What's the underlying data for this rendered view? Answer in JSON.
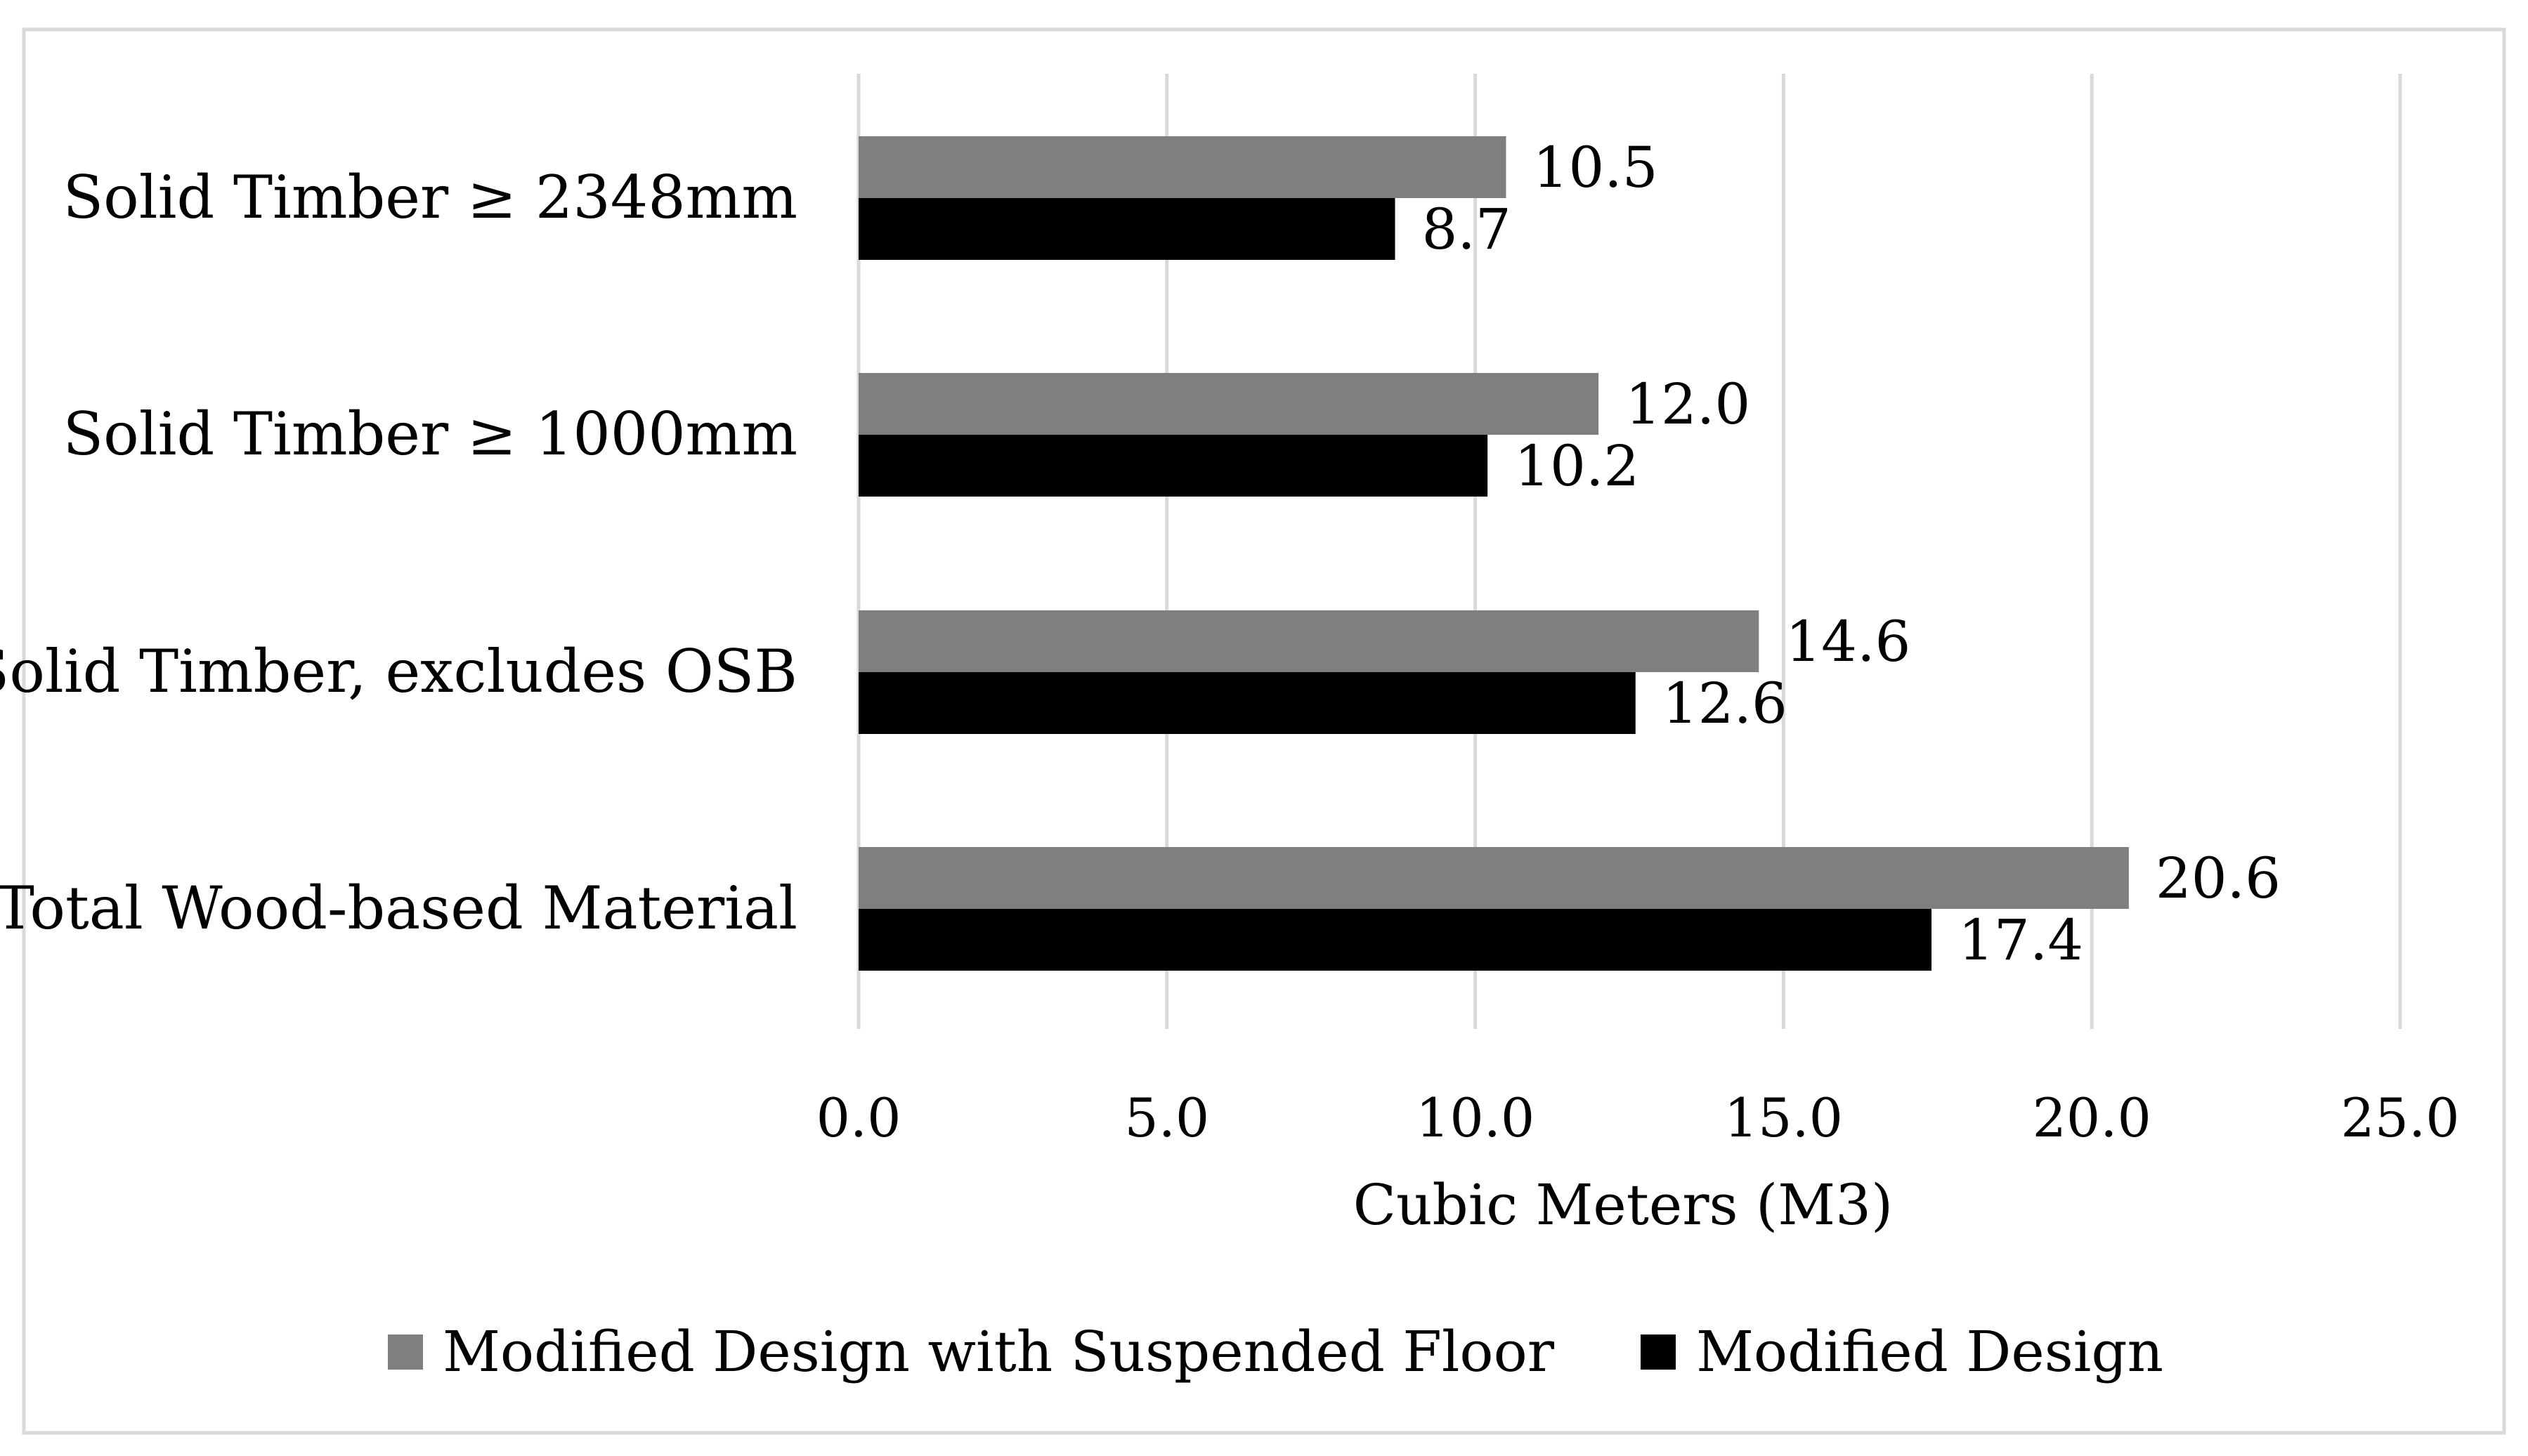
{
  "chart_data": {
    "type": "bar",
    "orientation": "horizontal",
    "categories": [
      "Solid Timber  ≥ 2348mm",
      "Solid Timber ≥ 1000mm",
      "Solid Timber, excludes OSB",
      "Total Wood-based Material"
    ],
    "series": [
      {
        "name": "Modified Design with Suspended Floor",
        "color": "#7f7f7f",
        "values": [
          10.5,
          12.0,
          14.6,
          20.6
        ],
        "labels": [
          "10.5",
          "12.0",
          "14.6",
          "20.6"
        ]
      },
      {
        "name": "Modified Design",
        "color": "#000000",
        "values": [
          8.7,
          10.2,
          12.6,
          17.4
        ],
        "labels": [
          "8.7",
          "10.2",
          "12.6",
          "17.4"
        ]
      }
    ],
    "xlabel": "Cubic Meters (M3)",
    "ylabel": "",
    "xlim": [
      0,
      25
    ],
    "ticks": [
      0,
      5,
      10,
      15,
      20,
      25
    ],
    "tick_labels": [
      "0.0",
      "5.0",
      "10.0",
      "15.0",
      "20.0",
      "25.0"
    ],
    "grid": true,
    "legend_position": "bottom"
  }
}
